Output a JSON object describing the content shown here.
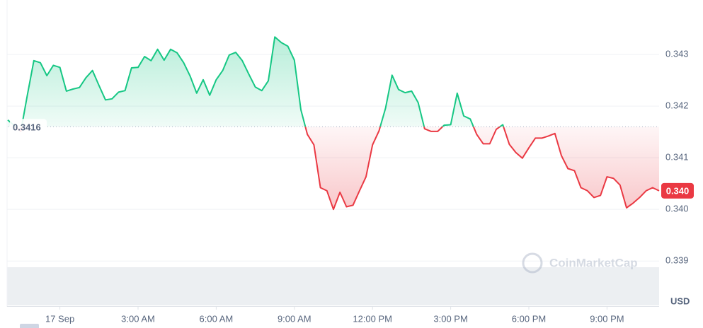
{
  "chart_data": {
    "type": "line",
    "watermark": "CoinMarketCap",
    "y_unit": "USD",
    "baseline": 0.3416,
    "color_up": "#16c784",
    "color_down": "#ea3943",
    "xlim": [
      -2,
      23
    ],
    "xticks": [
      {
        "value": 0,
        "label": "17 Sep"
      },
      {
        "value": 3,
        "label": "3:00 AM"
      },
      {
        "value": 6,
        "label": "6:00 AM"
      },
      {
        "value": 9,
        "label": "9:00 AM"
      },
      {
        "value": 12,
        "label": "12:00 PM"
      },
      {
        "value": 15,
        "label": "3:00 PM"
      },
      {
        "value": 18,
        "label": "6:00 PM"
      },
      {
        "value": 21,
        "label": "9:00 PM"
      }
    ],
    "ylim": [
      0.33814,
      0.344
    ],
    "yticks": [
      0.339,
      {
        "value": 0.34,
        "label": "0.340"
      },
      0.341,
      0.342,
      0.343
    ],
    "grid": true,
    "x": [
      -2,
      -1.75,
      -1.5,
      -1.25,
      -1,
      -0.75,
      -0.5,
      -0.25,
      0,
      0.25,
      0.5,
      0.75,
      1,
      1.25,
      1.5,
      1.75,
      2,
      2.25,
      2.5,
      2.75,
      3,
      3.25,
      3.5,
      3.75,
      4,
      4.25,
      4.5,
      4.75,
      5,
      5.25,
      5.5,
      5.75,
      6,
      6.25,
      6.5,
      6.75,
      7,
      7.25,
      7.5,
      7.75,
      8,
      8.25,
      8.5,
      8.75,
      9,
      9.25,
      9.5,
      9.75,
      10,
      10.25,
      10.5,
      10.75,
      11,
      11.25,
      11.5,
      11.75,
      12,
      12.25,
      12.5,
      12.75,
      13,
      13.25,
      13.5,
      13.75,
      14,
      14.25,
      14.5,
      14.75,
      15,
      15.25,
      15.5,
      15.75,
      16,
      16.25,
      16.5,
      16.75,
      17,
      17.25,
      17.5,
      17.75,
      18,
      18.25,
      18.5,
      18.75,
      19,
      19.25,
      19.5,
      19.75,
      20,
      20.25,
      20.5,
      20.75,
      21,
      21.25,
      21.5,
      21.75,
      22,
      22.25,
      22.5,
      22.75,
      23
    ],
    "values": [
      0.34173,
      0.34162,
      0.34151,
      0.34221,
      0.34288,
      0.34284,
      0.34259,
      0.34279,
      0.34275,
      0.34229,
      0.34233,
      0.34236,
      0.34255,
      0.34269,
      0.3424,
      0.34212,
      0.34214,
      0.34227,
      0.3423,
      0.34274,
      0.34275,
      0.34296,
      0.34288,
      0.3431,
      0.34289,
      0.3431,
      0.34303,
      0.34284,
      0.34258,
      0.34225,
      0.34251,
      0.34221,
      0.34251,
      0.34269,
      0.34299,
      0.34304,
      0.34288,
      0.34262,
      0.34237,
      0.3423,
      0.34249,
      0.34334,
      0.34323,
      0.34316,
      0.34289,
      0.34193,
      0.34145,
      0.34125,
      0.34042,
      0.34036,
      0.34,
      0.34033,
      0.34005,
      0.34008,
      0.34036,
      0.34063,
      0.34125,
      0.34152,
      0.34196,
      0.3426,
      0.34232,
      0.34226,
      0.34229,
      0.34207,
      0.34156,
      0.34151,
      0.34151,
      0.34163,
      0.34164,
      0.34225,
      0.34181,
      0.34175,
      0.34145,
      0.34127,
      0.34127,
      0.34155,
      0.34164,
      0.34126,
      0.3411,
      0.34099,
      0.34119,
      0.34138,
      0.34138,
      0.34142,
      0.34147,
      0.34104,
      0.34079,
      0.34075,
      0.34042,
      0.34036,
      0.34023,
      0.34027,
      0.34063,
      0.3406,
      0.34047,
      0.34003,
      0.34012,
      0.34023,
      0.34036,
      0.34042,
      0.34036
    ],
    "value_labels": [
      null,
      null,
      null,
      null,
      null,
      null,
      null,
      null,
      null,
      null,
      null,
      null,
      null,
      null,
      null,
      null,
      null,
      null,
      null,
      null,
      null,
      null,
      null,
      null,
      null,
      null,
      null,
      null,
      null,
      null,
      null,
      null,
      null,
      null,
      null,
      null,
      null,
      null,
      null,
      null,
      null,
      null,
      null,
      null,
      null,
      null,
      null,
      null,
      null,
      null,
      null,
      null,
      null,
      null,
      null,
      null,
      null,
      null,
      null,
      null,
      null,
      null,
      null,
      null,
      null,
      null,
      null,
      null,
      null,
      null,
      null,
      null,
      null,
      null,
      null,
      null,
      null,
      null,
      null,
      null,
      null,
      null,
      null,
      null,
      null,
      null,
      null,
      null,
      null,
      null,
      null,
      null,
      null,
      null,
      null,
      null,
      null,
      null,
      null,
      null,
      "0.340"
    ]
  }
}
